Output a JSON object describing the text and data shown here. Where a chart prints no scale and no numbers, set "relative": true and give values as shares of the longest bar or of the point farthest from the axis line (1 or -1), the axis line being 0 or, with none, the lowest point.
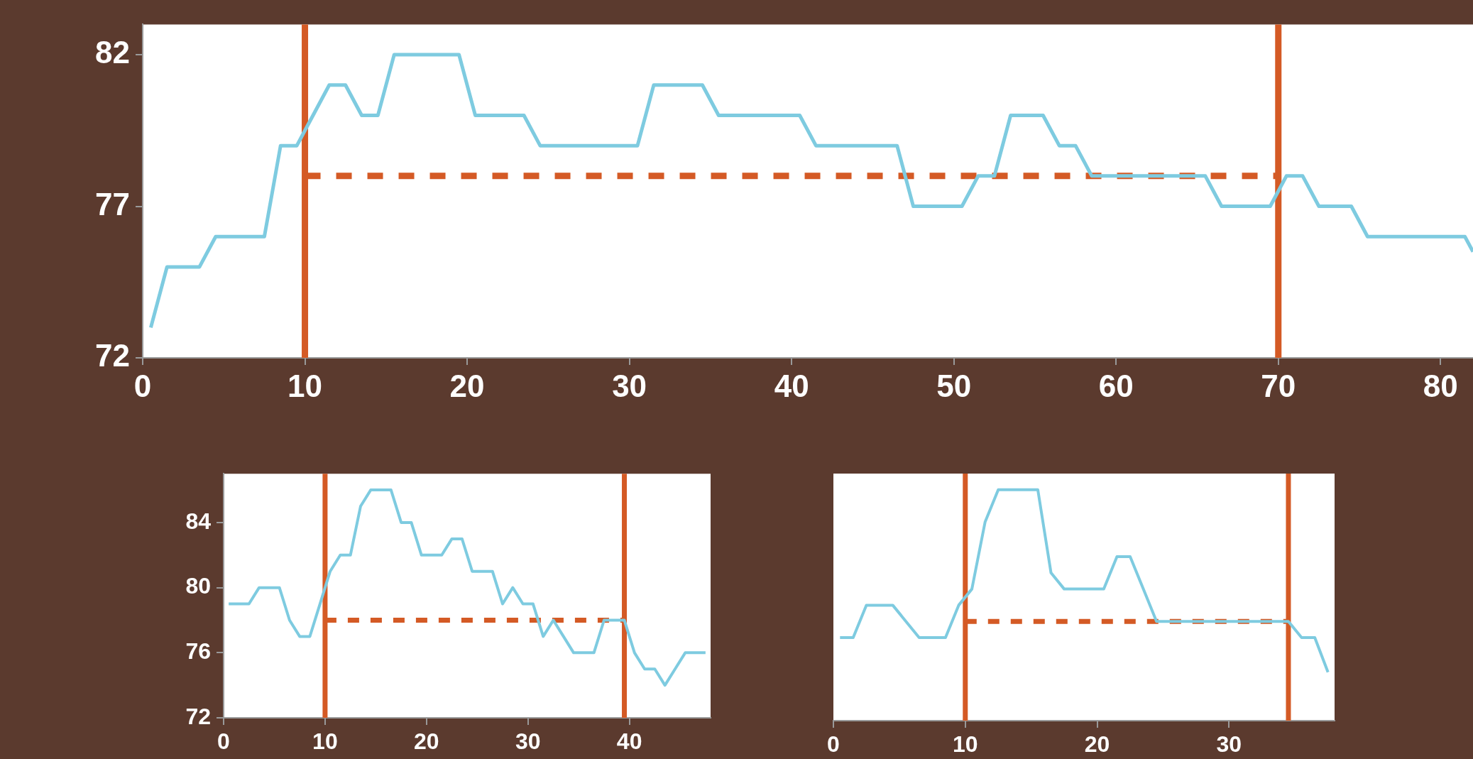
{
  "chart_data": [
    {
      "type": "line",
      "marker": "none",
      "x": [
        0.5,
        1.5,
        2.5,
        3.5,
        4.5,
        5.5,
        6.5,
        7.5,
        8.5,
        9.5,
        10.5,
        11.5,
        12.5,
        13.5,
        14.5,
        15.5,
        16.5,
        17.5,
        18.5,
        19.5,
        20.5,
        21.5,
        22.5,
        23.5,
        24.5,
        25.5,
        26.5,
        27.5,
        28.5,
        29.5,
        30.5,
        31.5,
        32.5,
        33.5,
        34.5,
        35.5,
        36.5,
        37.5,
        38.5,
        39.5,
        40.5,
        41.5,
        42.5,
        43.5,
        44.5,
        45.5,
        46.5,
        47.5,
        48.5,
        49.5,
        50.5,
        51.5,
        52.5,
        53.5,
        54.5,
        55.5,
        56.5,
        57.5,
        58.5,
        59.5,
        60.5,
        61.5,
        62.5,
        63.5,
        64.5,
        65.5,
        66.5,
        67.5,
        68.5,
        69.5,
        70.5,
        71.5,
        72.5,
        73.5,
        74.5,
        75.5,
        76.5,
        77.5,
        78.5,
        79.5,
        80.5,
        81.5,
        82
      ],
      "series": [
        {
          "color": "#7ecbe0",
          "values": [
            73,
            75,
            75,
            75,
            76,
            76,
            76,
            76,
            79,
            79,
            80,
            81,
            81,
            80,
            80,
            82,
            82,
            82,
            82,
            82,
            80,
            80,
            80,
            80,
            79,
            79,
            79,
            79,
            79,
            79,
            79,
            81,
            81,
            81,
            81,
            80,
            80,
            80,
            80,
            80,
            80,
            79,
            79,
            79,
            79,
            79,
            79,
            77,
            77,
            77,
            77,
            78,
            78,
            80,
            80,
            80,
            79,
            79,
            78,
            78,
            78,
            78,
            78,
            78,
            78,
            78,
            77,
            77,
            77,
            77,
            78,
            78,
            77,
            77,
            77,
            76,
            76,
            76,
            76,
            76,
            76,
            76,
            75.5
          ]
        },
        {
          "type": "line",
          "x": [
            10,
            70
          ],
          "values": [
            78,
            78
          ],
          "color": "#d45a25",
          "line_style": "dashed"
        }
      ],
      "xlim": [
        0,
        82
      ],
      "xticks": [
        0,
        10,
        20,
        30,
        40,
        50,
        60,
        70,
        80
      ],
      "ylim": [
        72,
        83
      ],
      "yticks": [
        72,
        77,
        82
      ],
      "ref_lines": [
        {
          "axis": "x",
          "value": 10,
          "color": "#d45a25"
        },
        {
          "axis": "x",
          "value": 70,
          "color": "#d45a25"
        }
      ]
    },
    {
      "type": "line",
      "marker": "none",
      "x": [
        0.5,
        1.5,
        2.5,
        3.5,
        4.5,
        5.5,
        6.5,
        7.5,
        8.5,
        9.5,
        10.5,
        11.5,
        12.5,
        13.5,
        14.5,
        15.5,
        16.5,
        17.5,
        18.5,
        19.5,
        20.5,
        21.5,
        22.5,
        23.5,
        24.5,
        25.5,
        26.5,
        27.5,
        28.5,
        29.5,
        30.5,
        31.5,
        32.5,
        33.5,
        34.5,
        35.5,
        36.5,
        37.5,
        38.5,
        39.5,
        40.5,
        41.5,
        42.5,
        43.5,
        44.5,
        45.5,
        46.5,
        47.5
      ],
      "series": [
        {
          "color": "#7ecbe0",
          "values": [
            79,
            79,
            79,
            80,
            80,
            80,
            78,
            77,
            77,
            79,
            81,
            82,
            82,
            85,
            86,
            86,
            86,
            84,
            84,
            82,
            82,
            82,
            83,
            83,
            81,
            81,
            81,
            79,
            80,
            79,
            79,
            77,
            78,
            77,
            76,
            76,
            76,
            78,
            78,
            78,
            76,
            75,
            75,
            74,
            75,
            76,
            76,
            76
          ]
        },
        {
          "type": "line",
          "x": [
            10,
            39.5
          ],
          "values": [
            78,
            78
          ],
          "color": "#d45a25",
          "line_style": "dashed"
        }
      ],
      "xlim": [
        0,
        48
      ],
      "xticks": [
        0,
        10,
        20,
        30,
        40
      ],
      "ylim": [
        72,
        87
      ],
      "yticks": [
        72,
        76,
        80,
        84
      ],
      "ref_lines": [
        {
          "axis": "x",
          "value": 10,
          "color": "#d45a25"
        },
        {
          "axis": "x",
          "value": 39.5,
          "color": "#d45a25"
        }
      ]
    },
    {
      "type": "line",
      "marker": "none",
      "relative": true,
      "tick_labels": "x",
      "x": [
        0.5,
        1.5,
        2.5,
        3.5,
        4.5,
        5.5,
        6.5,
        7.5,
        8.5,
        9.5,
        10.5,
        11.5,
        12.5,
        13.5,
        14.5,
        15.5,
        16.5,
        17.5,
        18.5,
        19.5,
        20.5,
        21.5,
        22.5,
        23.5,
        24.5,
        25.5,
        26.5,
        27.5,
        28.5,
        29.5,
        30.5,
        31.5,
        32.5,
        33.5,
        34.5,
        35.5,
        36.5,
        37.5
      ],
      "series": [
        {
          "color": "#7ecbe0",
          "values": [
            0.36,
            0.36,
            0.5,
            0.5,
            0.5,
            0.43,
            0.36,
            0.36,
            0.36,
            0.5,
            0.57,
            0.86,
            1,
            1,
            1,
            1,
            0.64,
            0.57,
            0.57,
            0.57,
            0.57,
            0.71,
            0.71,
            0.57,
            0.43,
            0.43,
            0.43,
            0.43,
            0.43,
            0.43,
            0.43,
            0.43,
            0.43,
            0.43,
            0.43,
            0.36,
            0.36,
            0.21
          ]
        },
        {
          "type": "line",
          "x": [
            10,
            34.5
          ],
          "values": [
            0.43,
            0.43
          ],
          "color": "#d45a25",
          "line_style": "dashed"
        }
      ],
      "xlim": [
        0,
        38
      ],
      "xticks": [
        0,
        10,
        20,
        30
      ],
      "ref_lines": [
        {
          "axis": "x",
          "value": 10,
          "color": "#d45a25"
        },
        {
          "axis": "x",
          "value": 34.5,
          "color": "#d45a25"
        }
      ]
    }
  ]
}
